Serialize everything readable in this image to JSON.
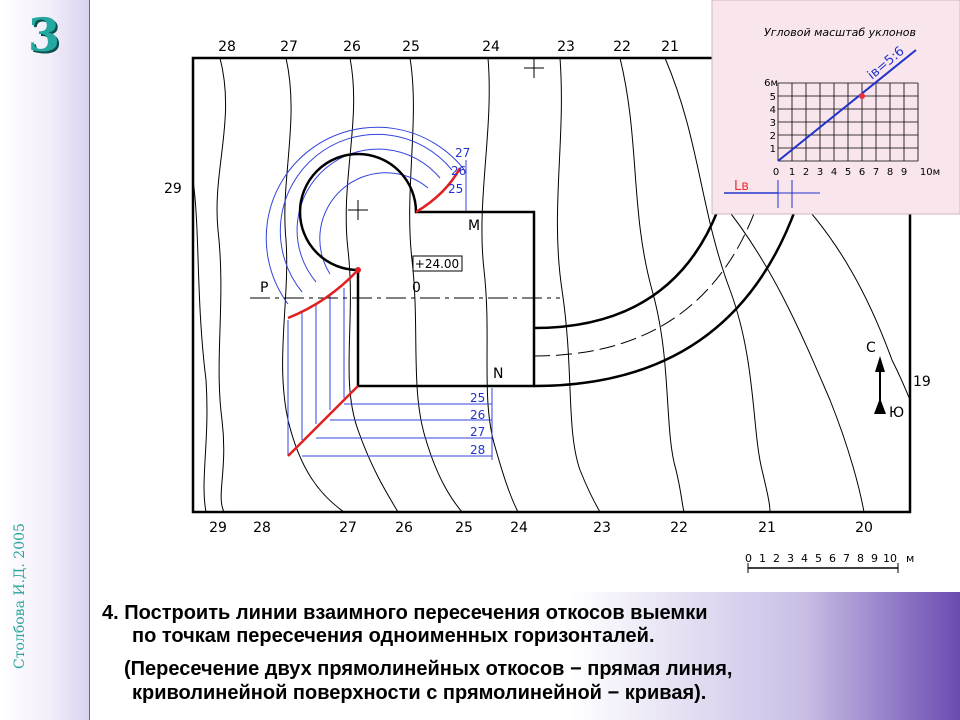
{
  "slide": {
    "number": "3",
    "author": "Столбова И.Д. 2005"
  },
  "plan": {
    "top_contour_labels": [
      "28",
      "27",
      "26",
      "25",
      "24",
      "23",
      "22",
      "21"
    ],
    "bottom_contour_labels": [
      "29",
      "28",
      "27",
      "26",
      "25",
      "24",
      "23",
      "22",
      "21",
      "20"
    ],
    "left_label": "29",
    "right_label": "19",
    "elevation": "+24.00",
    "point_m": "M",
    "point_n": "N",
    "point_o": "0",
    "point_p": "P",
    "upper_slope_marks": [
      "27",
      "26",
      "25"
    ],
    "lower_slope_marks": [
      "25",
      "26",
      "27",
      "28"
    ],
    "north_letter": "С",
    "south_letter": "Ю",
    "scale_labels": [
      "0",
      "1",
      "2",
      "3",
      "4",
      "5",
      "6",
      "7",
      "8",
      "9",
      "10",
      "м"
    ]
  },
  "inset": {
    "title": "Угловой масштаб уклонов",
    "slope_label": "iв=5:6",
    "y_labels": [
      "1",
      "2",
      "3",
      "4",
      "5",
      "6м"
    ],
    "x_labels": [
      "0",
      "1",
      "2",
      "3",
      "4",
      "5",
      "6",
      "7",
      "8",
      "9",
      "10м"
    ],
    "base_label": "Lв",
    "colors": {
      "background": "#f9e6ec",
      "line": "#2233cc",
      "marker": "#e8303a"
    }
  },
  "colors": {
    "contour": "#000000",
    "construction": "#3344dd",
    "intersection": "#e02020",
    "accent": "#25a8a2"
  },
  "caption": {
    "line1": "4. Построить линии взаимного пересечения откосов выемки",
    "line2": "по точкам пересечения одноименных горизонталей.",
    "line3": "(Пересечение двух прямолинейных откосов − прямая линия,",
    "line4": "криволинейной поверхности с прямолинейной − кривая)."
  }
}
